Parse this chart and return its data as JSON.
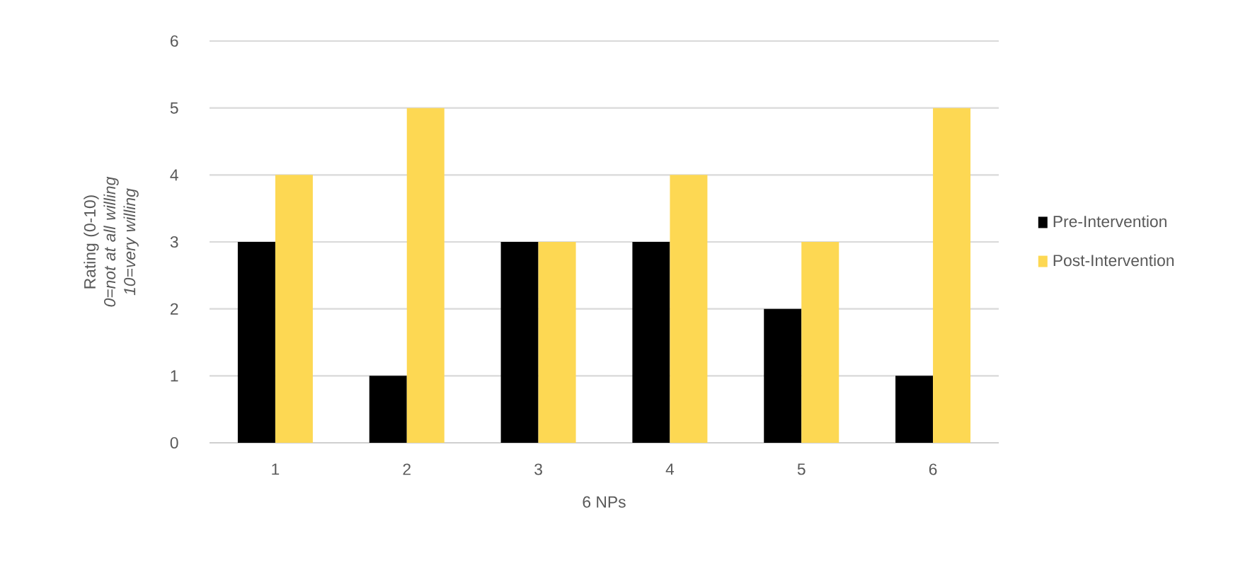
{
  "chart_data": {
    "type": "bar",
    "categories": [
      "1",
      "2",
      "3",
      "4",
      "5",
      "6"
    ],
    "xlabel": "6 NPs",
    "ylabel": "Rating (0-10) *0=not at all willing 10=very willing*",
    "series": [
      {
        "name": "Pre-Intervention",
        "color": "#000000",
        "values": [
          3,
          1,
          3,
          3,
          2,
          1
        ]
      },
      {
        "name": "Post-Intervention",
        "color": "#fdd853",
        "values": [
          4,
          5,
          3,
          4,
          3,
          5
        ]
      }
    ],
    "ylim": [
      0,
      6
    ],
    "yticks": [
      0,
      1,
      2,
      3,
      4,
      5,
      6
    ],
    "grid": "y",
    "legend": "right"
  }
}
